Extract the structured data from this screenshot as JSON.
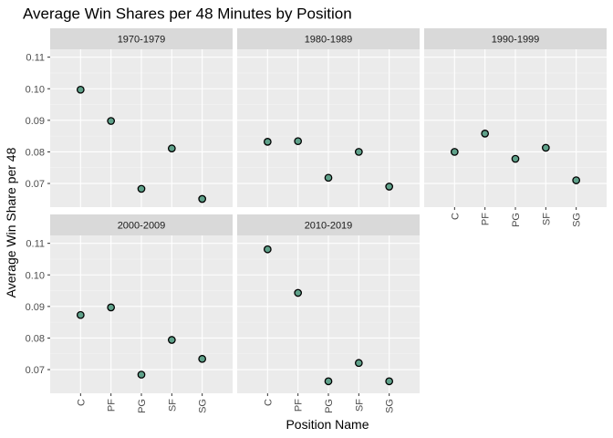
{
  "chart_data": {
    "type": "scatter",
    "title": "Average Win Shares per 48 Minutes by Position",
    "xlabel": "Position Name",
    "ylabel": "Average Win Share per 48",
    "categories": [
      "C",
      "PF",
      "PG",
      "SF",
      "SG"
    ],
    "ylim": [
      0.0625,
      0.1125
    ],
    "yticks": [
      0.07,
      0.08,
      0.09,
      0.1,
      0.11
    ],
    "ytick_labels": [
      "0.07",
      "0.08",
      "0.09",
      "0.10",
      "0.11"
    ],
    "grid": true,
    "point_color": "#5fa18a",
    "panels": [
      {
        "name": "1970-1979",
        "values": [
          0.0997,
          0.0898,
          0.0683,
          0.0811,
          0.0651
        ]
      },
      {
        "name": "1980-1989",
        "values": [
          0.0832,
          0.0834,
          0.0718,
          0.08,
          0.069
        ]
      },
      {
        "name": "1990-1999",
        "values": [
          0.08,
          0.0858,
          0.0778,
          0.0813,
          0.071
        ]
      },
      {
        "name": "2000-2009",
        "values": [
          0.0873,
          0.0897,
          0.0684,
          0.0794,
          0.0734
        ]
      },
      {
        "name": "2010-2019",
        "values": [
          0.1081,
          0.0943,
          0.0663,
          0.0721,
          0.0663
        ]
      }
    ]
  }
}
